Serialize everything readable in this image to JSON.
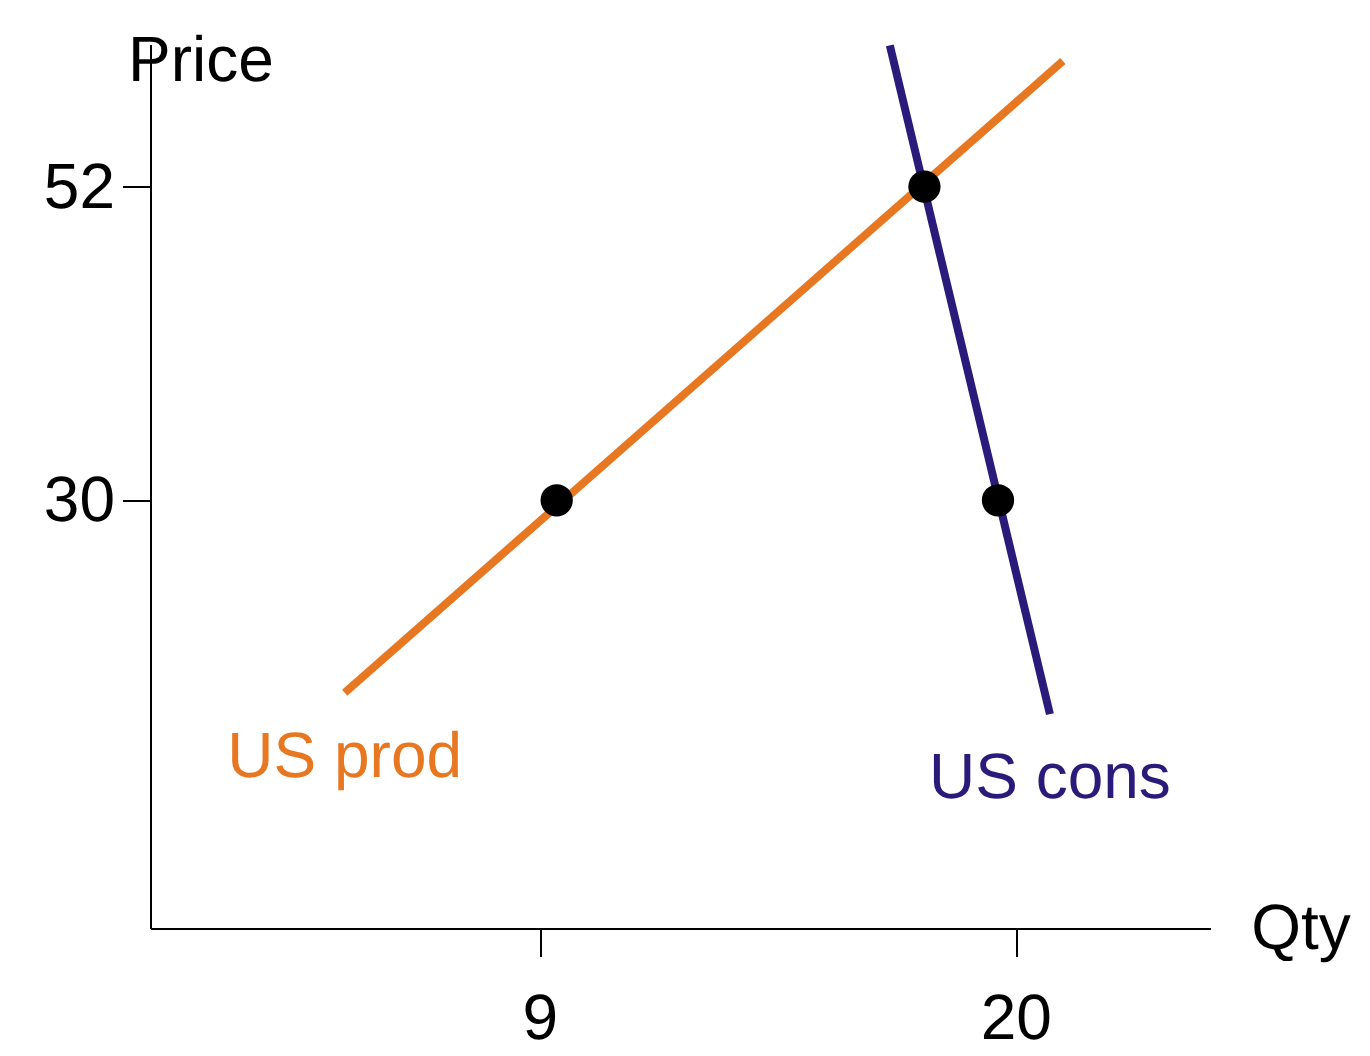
{
  "chart_data": {
    "type": "line",
    "xlabel": "Qty",
    "ylabel": "Price",
    "xlim": [
      0,
      24.5
    ],
    "ylim": [
      0,
      62
    ],
    "xticks": [
      9,
      20
    ],
    "yticks": [
      30,
      52
    ],
    "series": [
      {
        "name": "US prod",
        "color": "#e87722",
        "x": [
          4.5,
          21.1
        ],
        "values": [
          16.5,
          60.8
        ]
      },
      {
        "name": "US cons",
        "color": "#2a1a7a",
        "x": [
          17.1,
          20.8
        ],
        "values": [
          61.9,
          15
        ]
      },
      {
        "type": "scatter",
        "color": "#000000",
        "marker": "circle",
        "x": [
          9.4,
          17.9,
          19.6
        ],
        "values": [
          30,
          52,
          30
        ]
      }
    ]
  }
}
